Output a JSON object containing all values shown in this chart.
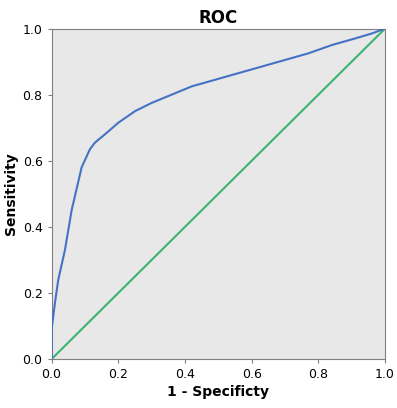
{
  "title": "ROC",
  "xlabel": "1 - Specificty",
  "ylabel": "Sensitivity",
  "background_color": "#e8e8e8",
  "fig_background": "#ffffff",
  "roc_color": "#4472C4",
  "diag_color": "#3CB371",
  "roc_linewidth": 1.5,
  "diag_linewidth": 1.5,
  "xlim": [
    0.0,
    1.0
  ],
  "ylim": [
    0.0,
    1.0
  ],
  "xticks": [
    0.0,
    0.2,
    0.4,
    0.6,
    0.8,
    1.0
  ],
  "yticks": [
    0.0,
    0.2,
    0.4,
    0.6,
    0.8,
    1.0
  ],
  "title_fontsize": 12,
  "label_fontsize": 10,
  "tick_fontsize": 9,
  "roc_x": [
    0.0,
    0.0,
    0.01,
    0.02,
    0.04,
    0.06,
    0.09,
    0.115,
    0.13,
    0.16,
    0.2,
    0.25,
    0.3,
    0.36,
    0.42,
    0.49,
    0.56,
    0.63,
    0.7,
    0.77,
    0.84,
    0.91,
    0.96,
    1.0
  ],
  "roc_y": [
    0.0,
    0.09,
    0.17,
    0.24,
    0.33,
    0.45,
    0.58,
    0.635,
    0.655,
    0.68,
    0.715,
    0.75,
    0.775,
    0.8,
    0.825,
    0.845,
    0.865,
    0.885,
    0.905,
    0.925,
    0.95,
    0.97,
    0.985,
    1.0
  ]
}
